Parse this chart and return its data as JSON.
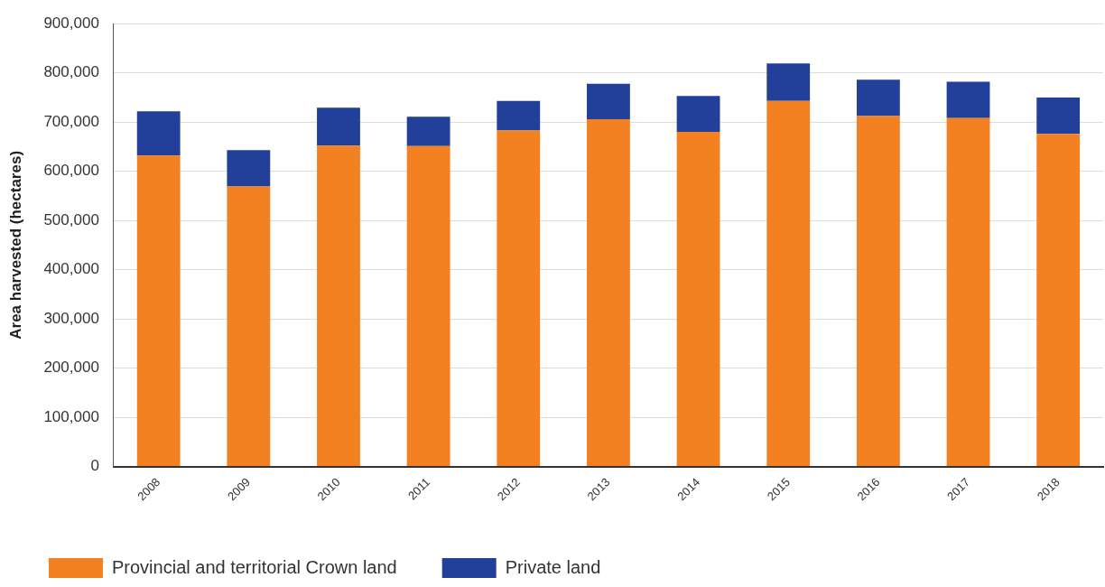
{
  "chart_data": {
    "type": "bar",
    "stacked": true,
    "ylabel": "Area harvested (hectares)",
    "categories": [
      "2008",
      "2009",
      "2010",
      "2011",
      "2012",
      "2013",
      "2014",
      "2015",
      "2016",
      "2017",
      "2018"
    ],
    "series": [
      {
        "name": "Provincial and territorial Crown land",
        "color": "#f38121",
        "values": [
          632000,
          569000,
          652000,
          651000,
          683000,
          706000,
          680000,
          743000,
          712000,
          708000,
          676000
        ]
      },
      {
        "name": "Private land",
        "color": "#22409a",
        "values": [
          90000,
          74000,
          77000,
          60000,
          60000,
          72000,
          73000,
          76000,
          74000,
          74000,
          74000
        ]
      }
    ],
    "ylim": [
      0,
      900000
    ],
    "yticks": [
      {
        "value": 0,
        "label": "0"
      },
      {
        "value": 100000,
        "label": "100,000"
      },
      {
        "value": 200000,
        "label": "200,000"
      },
      {
        "value": 300000,
        "label": "300,000"
      },
      {
        "value": 400000,
        "label": "400,000"
      },
      {
        "value": 500000,
        "label": "500,000"
      },
      {
        "value": 600000,
        "label": "600,000"
      },
      {
        "value": 700000,
        "label": "700,000"
      },
      {
        "value": 800000,
        "label": "800,000"
      },
      {
        "value": 900000,
        "label": "900,000"
      }
    ],
    "grid": "y",
    "legend": "bottom left"
  }
}
